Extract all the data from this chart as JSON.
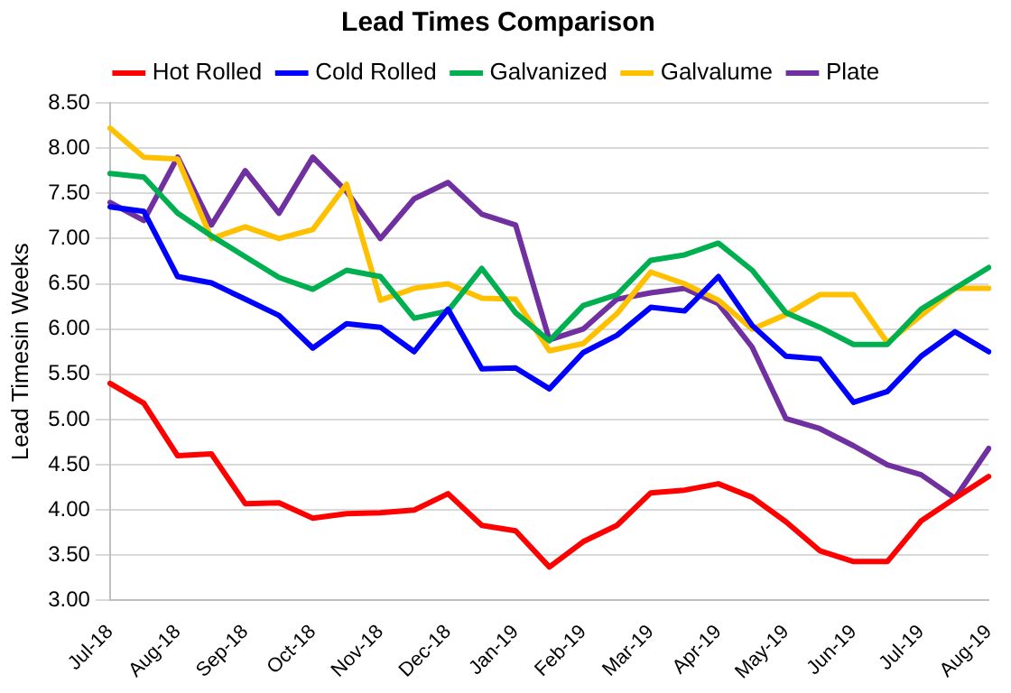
{
  "chart_data": {
    "type": "line",
    "title": "Lead Times Comparison",
    "ylabel": "Lead Timesin Weeks",
    "categories": [
      "Jul-18",
      null,
      "Aug-18",
      null,
      "Sep-18",
      null,
      "Oct-18",
      null,
      "Nov-18",
      null,
      "Dec-18",
      null,
      "Jan-19",
      null,
      "Feb-19",
      null,
      "Mar-19",
      null,
      "Apr-19",
      null,
      "May-19",
      null,
      "Jun-19",
      null,
      "Jul-19",
      null,
      "Aug-19"
    ],
    "series": [
      {
        "name": "Hot Rolled",
        "color": "#ff0000",
        "values": [
          5.4,
          5.18,
          4.6,
          4.62,
          4.07,
          4.08,
          3.91,
          3.96,
          3.97,
          4.0,
          4.18,
          3.83,
          3.77,
          3.37,
          3.65,
          3.83,
          4.19,
          4.22,
          4.29,
          4.14,
          3.87,
          3.55,
          3.43,
          3.43,
          3.88,
          4.13,
          4.37
        ]
      },
      {
        "name": "Cold Rolled",
        "color": "#0000ff",
        "values": [
          7.35,
          7.3,
          6.58,
          6.51,
          6.33,
          6.15,
          5.79,
          6.06,
          6.02,
          5.75,
          6.22,
          5.56,
          5.57,
          5.34,
          5.74,
          5.93,
          6.24,
          6.2,
          6.58,
          6.04,
          5.7,
          5.67,
          5.19,
          5.31,
          5.7,
          5.97,
          5.75
        ]
      },
      {
        "name": "Galvanized",
        "color": "#00b050",
        "values": [
          7.72,
          7.68,
          7.28,
          7.03,
          6.8,
          6.57,
          6.44,
          6.65,
          6.58,
          6.12,
          6.2,
          6.67,
          6.18,
          5.87,
          6.26,
          6.38,
          6.76,
          6.82,
          6.95,
          6.65,
          6.18,
          6.02,
          5.83,
          5.83,
          6.22,
          6.45,
          6.68
        ]
      },
      {
        "name": "Galvalume",
        "color": "#ffc000",
        "values": [
          8.22,
          7.9,
          7.88,
          7.0,
          7.13,
          7.0,
          7.1,
          7.6,
          6.32,
          6.45,
          6.5,
          6.34,
          6.33,
          5.76,
          5.84,
          6.17,
          6.63,
          6.5,
          6.32,
          6.0,
          6.16,
          6.38,
          6.38,
          5.85,
          6.15,
          6.45,
          6.45
        ]
      },
      {
        "name": "Plate",
        "color": "#7030a0",
        "values": [
          7.4,
          7.2,
          7.9,
          7.15,
          7.75,
          7.28,
          7.9,
          7.52,
          7.0,
          7.44,
          7.62,
          7.27,
          7.15,
          5.88,
          6.0,
          6.33,
          6.4,
          6.45,
          6.28,
          5.8,
          5.01,
          4.9,
          4.71,
          4.5,
          4.39,
          4.13,
          4.68
        ]
      }
    ],
    "ylim": [
      3,
      8.5
    ],
    "yticks": [
      {
        "value": 3,
        "label": "3.00"
      },
      {
        "value": 3.5,
        "label": "3.50"
      },
      {
        "value": 4,
        "label": "4.00"
      },
      {
        "value": 4.5,
        "label": "4.50"
      },
      {
        "value": 5,
        "label": "5.00"
      },
      {
        "value": 5.5,
        "label": "5.50"
      },
      {
        "value": 6,
        "label": "6.00"
      },
      {
        "value": 6.5,
        "label": "6.50"
      },
      {
        "value": 7,
        "label": "7.00"
      },
      {
        "value": 7.5,
        "label": "7.50"
      },
      {
        "value": 8,
        "label": "8.00"
      },
      {
        "value": 8.5,
        "label": "8.50"
      }
    ],
    "grid": "y",
    "legend": "top",
    "marker": "none",
    "line_style": "solid"
  }
}
